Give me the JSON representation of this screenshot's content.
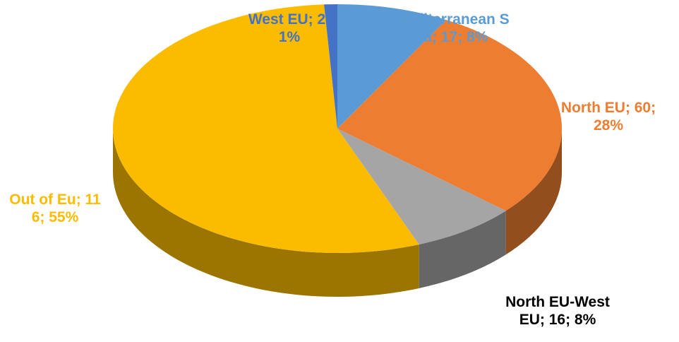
{
  "chart_data": {
    "type": "pie3d",
    "values": [
      17,
      60,
      16,
      116,
      2
    ],
    "value_labels": [
      "Mediterranean Sea; 17; 8%",
      "North EU; 60; 28%",
      "North EU-West EU; 16; 8%",
      "Out of Eu; 116; 55%",
      "West EU; 2; 1%"
    ],
    "colors": [
      "#5b9bd5",
      "#ed7d31",
      "#a5a5a5",
      "#fbbc00",
      "#4472c4"
    ],
    "label_colors": [
      "#5b9bd5",
      "#ed7d31",
      "#000000",
      "#fbbc00",
      "#4472c4"
    ]
  }
}
